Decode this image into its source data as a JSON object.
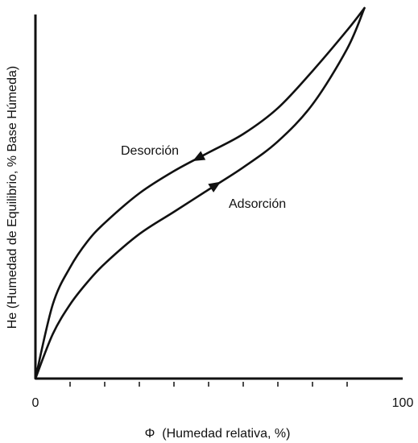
{
  "chart_data": {
    "type": "line",
    "xlabel": "Φ  (Humedad relativa, %)",
    "ylabel": "He (Humedad de Equilibrio, % Base Húmeda)",
    "xlim": [
      0,
      100
    ],
    "ylim": [
      0,
      100
    ],
    "x_tick_labels": [
      "0",
      "100"
    ],
    "x_minor_ticks": [
      10,
      20,
      30,
      40,
      50,
      60,
      70,
      80,
      90
    ],
    "grid": false,
    "colors": {
      "line": "#111111",
      "background": "#ffffff"
    },
    "series": [
      {
        "name": "Desorción",
        "direction": "decreasing",
        "x": [
          0,
          5,
          10,
          15,
          20,
          30,
          40,
          50,
          60,
          70,
          80,
          90,
          95
        ],
        "y": [
          0,
          20,
          30,
          37,
          42,
          50,
          56,
          61,
          66,
          73,
          83,
          94,
          100
        ],
        "arrow_at_x": 47
      },
      {
        "name": "Adsorción",
        "direction": "increasing",
        "x": [
          0,
          5,
          10,
          15,
          20,
          30,
          40,
          50,
          60,
          70,
          80,
          90,
          95
        ],
        "y": [
          0,
          12,
          20,
          26,
          31,
          39,
          45,
          51,
          57,
          64,
          74,
          89,
          100
        ],
        "arrow_at_x": 52
      }
    ]
  }
}
